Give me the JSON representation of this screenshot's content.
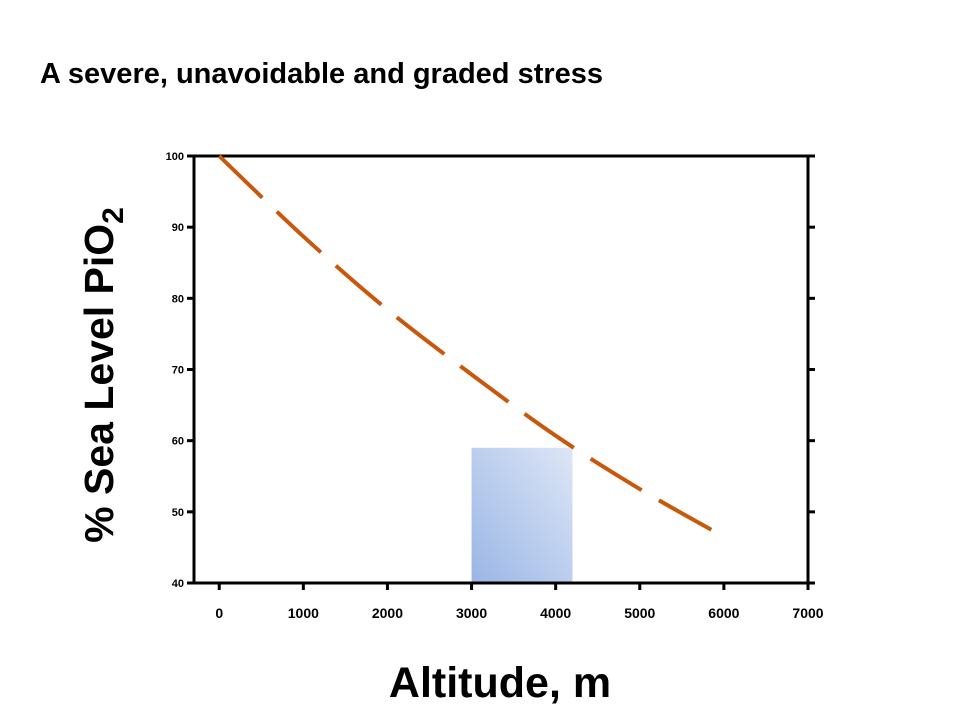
{
  "slide": {
    "title": "A severe, unavoidable and graded stress"
  },
  "chart_data": {
    "type": "line",
    "xlabel": "Altitude, m",
    "ylabel_main": "% Sea Level PiO",
    "ylabel_subscript": "2",
    "xlim": [
      -300,
      7000
    ],
    "ylim": [
      40,
      100
    ],
    "x_ticks": [
      0,
      1000,
      2000,
      3000,
      4000,
      5000,
      6000,
      7000
    ],
    "y_ticks": [
      40,
      50,
      60,
      70,
      80,
      90,
      100
    ],
    "grid": false,
    "line_color": "#c8580c",
    "line_style": "dashed",
    "series": [
      {
        "x": [
          0,
          1000,
          2000,
          3000,
          4000,
          5000,
          6000
        ],
        "y": [
          100,
          88.7,
          78.4,
          69.3,
          60.7,
          53.2,
          46.5
        ]
      }
    ],
    "highlight_band": {
      "x_range": [
        3000,
        4200
      ],
      "y_range": [
        40,
        59
      ],
      "color_start": "#9ab6e6",
      "color_end": "#dde6f6"
    }
  }
}
